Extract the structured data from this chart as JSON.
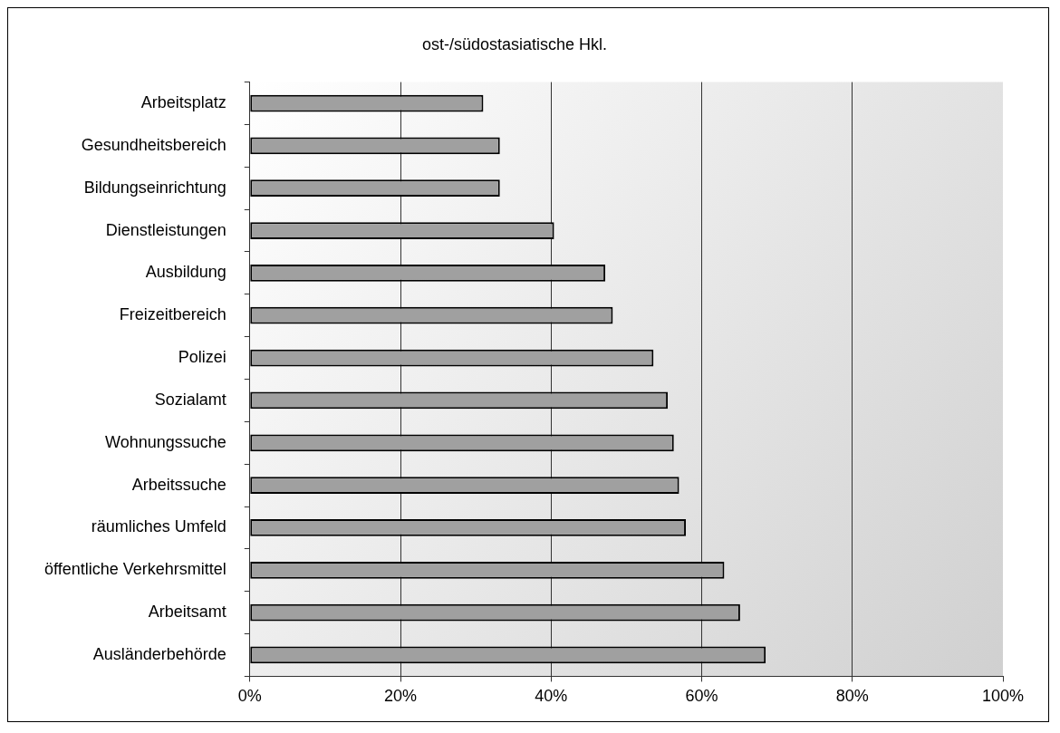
{
  "chart_data": {
    "type": "bar",
    "orientation": "horizontal",
    "title": "ost-/südostasiatische Hkl.",
    "categories": [
      "Arbeitsplatz",
      "Gesundheitsbereich",
      "Bildungseinrichtung",
      "Dienstleistungen",
      "Ausbildung",
      "Freizeitbereich",
      "Polizei",
      "Sozialamt",
      "Wohnungssuche",
      "Arbeitssuche",
      "räumliches Umfeld",
      "öffentliche Verkehrsmittel",
      "Arbeitsamt",
      "Ausländerbehörde"
    ],
    "values": [
      31.0,
      33.2,
      33.2,
      40.4,
      47.2,
      48.2,
      53.6,
      55.5,
      56.3,
      57.0,
      57.9,
      63.0,
      65.1,
      68.5
    ],
    "color": "#a0a0a0",
    "xlim": [
      0,
      100
    ],
    "xticks": [
      {
        "value": 0,
        "label": "0%"
      },
      {
        "value": 20,
        "label": "20%"
      },
      {
        "value": 40,
        "label": "40%"
      },
      {
        "value": 60,
        "label": "60%"
      },
      {
        "value": 80,
        "label": "80%"
      },
      {
        "value": 100,
        "label": "100%"
      }
    ],
    "grid": "x",
    "legend": false
  }
}
